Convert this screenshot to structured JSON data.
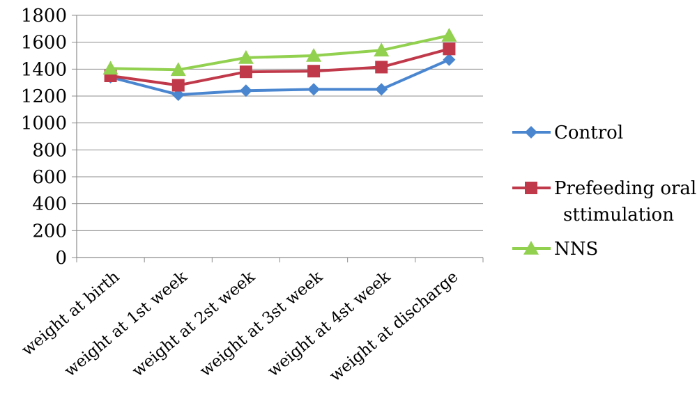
{
  "chart_data": {
    "type": "line",
    "title": "",
    "xlabel": "",
    "ylabel": "",
    "categories": [
      "weight at birth",
      "weight at 1st week",
      "weight at 2st week",
      "weight at 3st week",
      "weight at 4st week",
      "weight at discharge"
    ],
    "ylim": [
      0,
      1800
    ],
    "yticks": [
      0,
      200,
      400,
      600,
      800,
      1000,
      1200,
      1400,
      1600,
      1800
    ],
    "grid": true,
    "legend_position": "right",
    "series": [
      {
        "name": "Control",
        "name_lines": [
          "Control"
        ],
        "marker": "diamond",
        "color": "#4a86d0",
        "values": [
          1340,
          1210,
          1240,
          1250,
          1250,
          1470
        ]
      },
      {
        "name": "Prefeeding oral sttimulation",
        "name_lines": [
          "Prefeeding oral",
          "sttimulation"
        ],
        "marker": "square",
        "color": "#c0394a",
        "values": [
          1350,
          1280,
          1380,
          1385,
          1415,
          1550
        ]
      },
      {
        "name": "NNS",
        "name_lines": [
          "NNS"
        ],
        "marker": "triangle",
        "color": "#92d050",
        "values": [
          1405,
          1395,
          1485,
          1500,
          1540,
          1650
        ]
      }
    ]
  }
}
